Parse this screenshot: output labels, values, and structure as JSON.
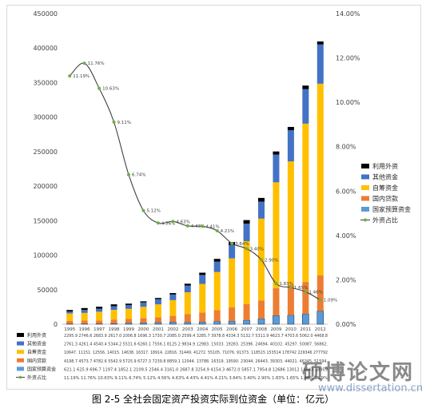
{
  "caption": "图 2-5 全社会固定资产投资实际到位资金（单位：亿元）",
  "watermark": {
    "text": "硕博论文网",
    "url": "www.dissertation.cn"
  },
  "chart_data": {
    "type": "bar",
    "stacked": true,
    "categories": [
      "1995",
      "1996",
      "1997",
      "1998",
      "1999",
      "2000",
      "2001",
      "2002",
      "2003",
      "2004",
      "2005",
      "2006",
      "2007",
      "2008",
      "2009",
      "2010",
      "2011",
      "2012"
    ],
    "left_axis": {
      "min": 0,
      "max": 450000,
      "ticks": [
        "0",
        "50000",
        "100000",
        "150000",
        "200000",
        "250000",
        "300000",
        "350000",
        "400000",
        "450000"
      ]
    },
    "right_axis": {
      "min": 0,
      "max": 14,
      "ticks": [
        "0.00%",
        "2.00%",
        "4.00%",
        "6.00%",
        "8.00%",
        "10.00%",
        "12.00%",
        "14.00%"
      ]
    },
    "series": [
      {
        "name": "国家预算资金",
        "color": "#5b9bd5",
        "values": [
          621.1,
          625.9,
          696.7,
          1197.4,
          1852.1,
          2109.5,
          2546.4,
          3161.0,
          2687.8,
          3254.9,
          4154.3,
          4672.0,
          5857.1,
          7954.8,
          12686,
          13012,
          14843,
          18959
        ]
      },
      {
        "name": "国内贷款",
        "color": "#ed7d31",
        "values": [
          4198.7,
          4573.7,
          4782.6,
          5542.9,
          5725.9,
          6727.3,
          7239.8,
          8859.1,
          12044,
          13788,
          16319,
          19590,
          23044,
          26443,
          39303,
          44021,
          46345,
          51594
        ]
      },
      {
        "name": "自筹资金",
        "color": "#ffc000",
        "values": [
          10647,
          11151,
          12556,
          14015,
          14638,
          16317,
          18914,
          22816,
          31449,
          41272,
          55105,
          71076,
          91373,
          118515,
          153514,
          178742,
          229346,
          277792
        ]
      },
      {
        "name": "其他资金",
        "color": "#4472c4",
        "values": [
          2761.3,
          4261.4,
          4540.4,
          5344.2,
          5531.6,
          6260.1,
          7556.1,
          8125.2,
          9834.9,
          12983,
          15033,
          19283,
          25396,
          24694,
          40102,
          45297,
          50087,
          56862
        ]
      },
      {
        "name": "利用外资",
        "color": "#000000",
        "values": [
          2295.9,
          2746.6,
          2683.9,
          2617.0,
          2006.8,
          1696.3,
          1730.7,
          2085.0,
          2599.4,
          3285.7,
          3978.8,
          4334.3,
          5132.7,
          5311.9,
          4623.7,
          4703.6,
          5062.0,
          4468.8
        ]
      }
    ],
    "line": {
      "name": "外资占比",
      "color": "#70ad47",
      "values": [
        11.19,
        11.76,
        10.63,
        9.11,
        6.74,
        5.12,
        4.56,
        4.63,
        4.43,
        4.41,
        4.21,
        3.64,
        3.4,
        2.9,
        1.83,
        1.65,
        1.46,
        1.09
      ],
      "labels": [
        "11.19%",
        "11.76%",
        "10.63%",
        "9.11%",
        "6.74%",
        "5.12%",
        "4.56%",
        "4.63%",
        "4.43%",
        "4.41%",
        "4.21%",
        "3.64%",
        "3.40%",
        "2.90%",
        "1.83%",
        "1.65%",
        "1.46%",
        "1.09%"
      ]
    },
    "table": {
      "rows": [
        {
          "name": "利用外资",
          "text": "2295.9 2746.6 2683.9 2617.0 2006.8 1696.3 1730.7 2085.0 2599.4 3285.7 3978.8 4334.3 5132.7 5311.9 4623.7 4703.6 5062.0 4468.8"
        },
        {
          "name": "其他资金",
          "text": "2761.3 4261.4 4540.4 5344.2 5531.6 6260.1 7556.1 8125.2 9834.9 12983. 15033. 19283. 25396. 24694. 40102. 45297. 50087. 56862."
        },
        {
          "name": "自筹资金",
          "text": "10647. 11151. 12556. 14015. 14638. 16317. 18914. 22816. 31449. 41272. 55105. 71076. 91373. 118515 153514 178742 229346 277792"
        },
        {
          "name": "国内贷款",
          "text": "4198.7 4573.7 4782.6 5542.9 5725.9 6727.3 7239.8 8859.1 12044. 13788. 16319. 19590. 23044. 26443. 39303. 44021. 46345. 51594."
        },
        {
          "name": "国家预算资金",
          "text": "621.1 625.9 696.7 1197.4 1852.1 2109.5 2546.4 3161.0 2687.8 3254.9 4154.3 4672.0 5857.1 7954.8 12686 13012 14843 18959"
        },
        {
          "name": "外资占比",
          "text": "11.19% 11.76% 10.63% 9.11% 6.74% 5.12% 4.56% 4.63% 4.43% 4.41% 4.21% 3.64% 3.40% 2.90% 1.83% 1.65% 1.46% 1.09%"
        }
      ]
    },
    "legend_position": "right",
    "grid": false
  }
}
